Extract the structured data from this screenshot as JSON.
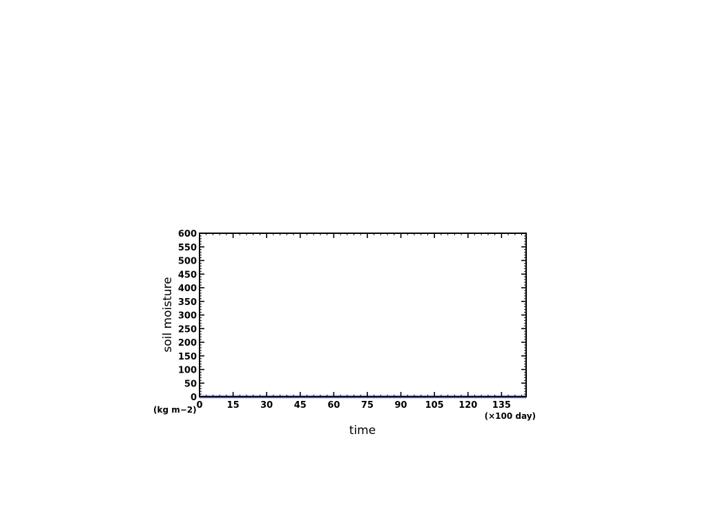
{
  "chart_data": {
    "type": "line",
    "title": "",
    "xlabel": "time",
    "ylabel": "soil moisture",
    "x_unit": "(×100 day)",
    "y_unit": "(kg m−2)",
    "xlim": [
      0,
      146
    ],
    "ylim": [
      0,
      600
    ],
    "x_ticks": [
      0,
      15,
      30,
      45,
      60,
      75,
      90,
      105,
      120,
      135
    ],
    "x_tick_labels": [
      "0",
      "15",
      "30",
      "45",
      "60",
      "75",
      "90",
      "105",
      "120",
      "135"
    ],
    "x_minor_step": 3,
    "y_ticks": [
      0,
      50,
      100,
      150,
      200,
      250,
      300,
      350,
      400,
      450,
      500,
      550,
      600
    ],
    "y_tick_labels": [
      "0",
      "50",
      "100",
      "150",
      "200",
      "250",
      "300",
      "350",
      "400",
      "450",
      "500",
      "550",
      "600"
    ],
    "y_minor_step": 10,
    "grid": false,
    "series": [
      {
        "color": "#aaaaee",
        "x": [
          0,
          146
        ],
        "y": [
          0,
          0
        ]
      }
    ]
  }
}
